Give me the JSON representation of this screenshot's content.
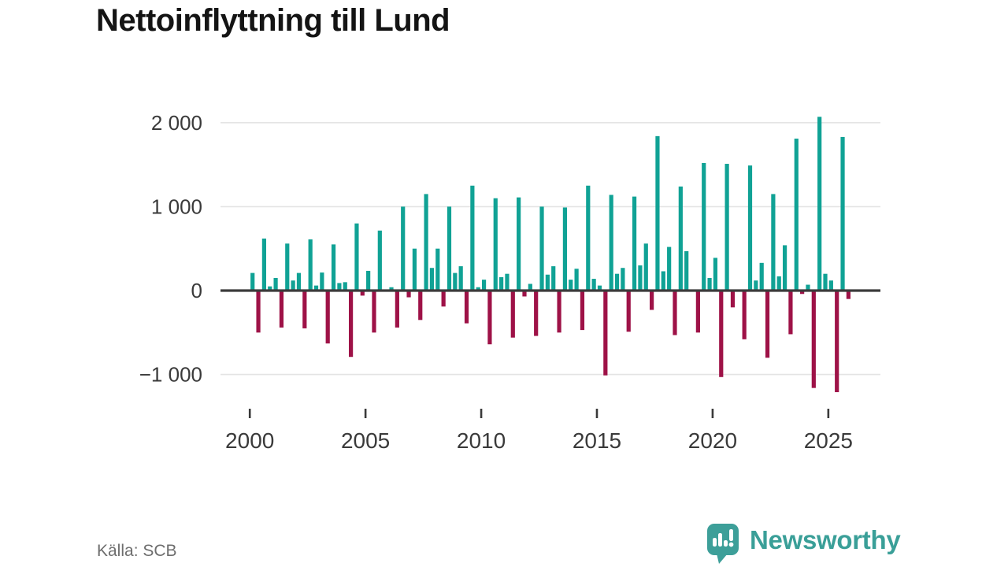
{
  "title": "Nettoinflyttning till Lund",
  "source": "Källa: SCB",
  "brand": {
    "name": "Newsworthy",
    "icon": "newsworthy-speech-bubble-bar-chart-icon"
  },
  "colors": {
    "positive_bar": "#10A295",
    "negative_bar": "#9E1247",
    "zero_axis": "#3B3B3B",
    "gridline": "#E4E4E4",
    "tick_text": "#3A3A3A",
    "muted_text": "#6E6E6E",
    "brand_teal": "#3A9F98",
    "title_text": "#141414"
  },
  "chart_data": {
    "type": "bar",
    "title": "Nettoinflyttning till Lund",
    "unit": "persons (net migration per quarter)",
    "x_unit": "quarter",
    "start": "2000-Q1",
    "end": "2025-Q4",
    "grid": "horizontal",
    "legend": "none",
    "ylim": [
      -1400,
      2200
    ],
    "y_ticks": [
      2000,
      1000,
      0,
      -1000
    ],
    "y_tick_labels": [
      "2 000",
      "1 000",
      "0",
      "−1 000"
    ],
    "x_tick_years": [
      2000,
      2005,
      2010,
      2015,
      2020,
      2025
    ],
    "x_tick_labels": [
      "2000",
      "2005",
      "2010",
      "2015",
      "2020",
      "2025"
    ],
    "data": [
      {
        "year": 2000,
        "q1": 210,
        "q2": -500,
        "q3": 620,
        "q4": 50
      },
      {
        "year": 2001,
        "q1": 150,
        "q2": -440,
        "q3": 560,
        "q4": 120
      },
      {
        "year": 2002,
        "q1": 210,
        "q2": -450,
        "q3": 610,
        "q4": 60
      },
      {
        "year": 2003,
        "q1": 215,
        "q2": -630,
        "q3": 550,
        "q4": 90
      },
      {
        "year": 2004,
        "q1": 100,
        "q2": -790,
        "q3": 800,
        "q4": -60
      },
      {
        "year": 2005,
        "q1": 235,
        "q2": -500,
        "q3": 715,
        "q4": 0
      },
      {
        "year": 2006,
        "q1": 40,
        "q2": -440,
        "q3": 1000,
        "q4": -80
      },
      {
        "year": 2007,
        "q1": 500,
        "q2": -350,
        "q3": 1150,
        "q4": 270
      },
      {
        "year": 2008,
        "q1": 500,
        "q2": -190,
        "q3": 1000,
        "q4": 210
      },
      {
        "year": 2009,
        "q1": 290,
        "q2": -390,
        "q3": 1250,
        "q4": 40
      },
      {
        "year": 2010,
        "q1": 130,
        "q2": -640,
        "q3": 1100,
        "q4": 160
      },
      {
        "year": 2011,
        "q1": 200,
        "q2": -560,
        "q3": 1110,
        "q4": -70
      },
      {
        "year": 2012,
        "q1": 80,
        "q2": -540,
        "q3": 1000,
        "q4": 190
      },
      {
        "year": 2013,
        "q1": 290,
        "q2": -500,
        "q3": 990,
        "q4": 130
      },
      {
        "year": 2014,
        "q1": 260,
        "q2": -470,
        "q3": 1250,
        "q4": 140
      },
      {
        "year": 2015,
        "q1": 60,
        "q2": -1010,
        "q3": 1140,
        "q4": 200
      },
      {
        "year": 2016,
        "q1": 270,
        "q2": -490,
        "q3": 1120,
        "q4": 300
      },
      {
        "year": 2017,
        "q1": 560,
        "q2": -230,
        "q3": 1840,
        "q4": 230
      },
      {
        "year": 2018,
        "q1": 520,
        "q2": -530,
        "q3": 1240,
        "q4": 470
      },
      {
        "year": 2019,
        "q1": 0,
        "q2": -500,
        "q3": 1520,
        "q4": 150
      },
      {
        "year": 2020,
        "q1": 390,
        "q2": -1030,
        "q3": 1510,
        "q4": -200
      },
      {
        "year": 2021,
        "q1": 0,
        "q2": -580,
        "q3": 1490,
        "q4": 120
      },
      {
        "year": 2022,
        "q1": 330,
        "q2": -800,
        "q3": 1150,
        "q4": 170
      },
      {
        "year": 2023,
        "q1": 540,
        "q2": -520,
        "q3": 1810,
        "q4": -40
      },
      {
        "year": 2024,
        "q1": 70,
        "q2": -1160,
        "q3": 2070,
        "q4": 200
      },
      {
        "year": 2025,
        "q1": 120,
        "q2": -1210,
        "q3": 1830,
        "q4": -100
      }
    ]
  }
}
